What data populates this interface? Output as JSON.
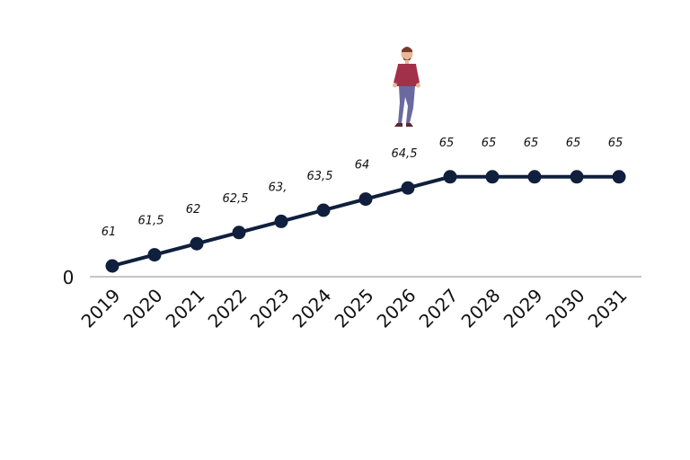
{
  "chart_data": {
    "type": "line",
    "x": [
      "2019",
      "2020",
      "2021",
      "2022",
      "2023",
      "2024",
      "2025",
      "2026",
      "2027",
      "2028",
      "2029",
      "2030",
      "2031"
    ],
    "values": [
      61,
      61.5,
      62,
      62.5,
      63,
      63.5,
      64,
      64.5,
      65,
      65,
      65,
      65,
      65
    ],
    "data_labels": [
      "61",
      "61,5",
      "62",
      "62,5",
      "63,",
      "63,5",
      "64",
      "64,5",
      "65",
      "65",
      "65",
      "65",
      "65"
    ],
    "y_axis_label": "0",
    "line_color": "#0f1f3d",
    "grid": false,
    "legend": "none",
    "illustration": "walking-man-icon",
    "illustration_colors": {
      "shirt": "#a3304a",
      "pants": "#6b6aa0",
      "skin": "#e8b89a",
      "hair": "#7a3b2a",
      "shoes": "#5a2a2a"
    }
  }
}
